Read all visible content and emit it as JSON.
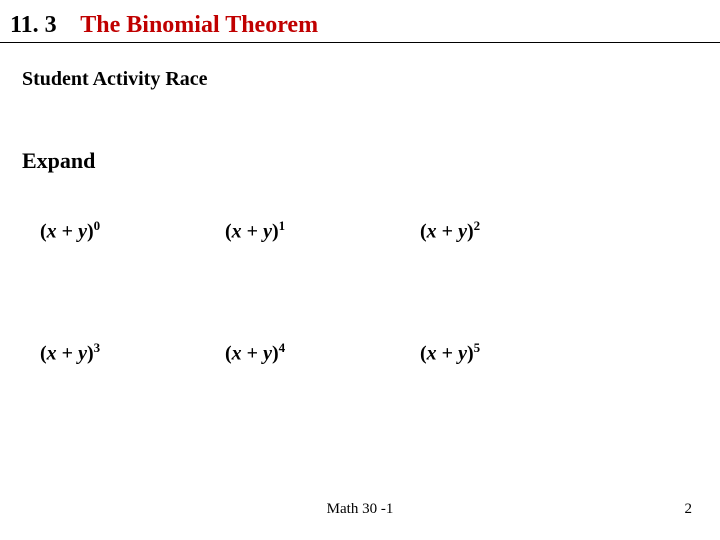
{
  "section": {
    "number": "11. 3",
    "title": "The Binomial Theorem",
    "title_color": "#c00000"
  },
  "subtitle": "Student Activity Race",
  "expand_label": "Expand",
  "exprs": {
    "r1c1": {
      "base_open": "(",
      "x": "x",
      "plus": " + ",
      "y": "y",
      "base_close": ")",
      "exp": "0"
    },
    "r1c2": {
      "base_open": "(",
      "x": "x",
      "plus": " + ",
      "y": "y",
      "base_close": ")",
      "exp": "1"
    },
    "r1c3": {
      "base_open": "(",
      "x": "x",
      "plus": " + ",
      "y": "y",
      "base_close": ")",
      "exp": "2"
    },
    "r2c1": {
      "base_open": "(",
      "x": "x",
      "plus": " + ",
      "y": "y",
      "base_close": ")",
      "exp": "3"
    },
    "r2c2": {
      "base_open": "(",
      "x": "x",
      "plus": " + ",
      "y": "y",
      "base_close": ")",
      "exp": "4"
    },
    "r2c3": {
      "base_open": "(",
      "x": "x",
      "plus": " + ",
      "y": "y",
      "base_close": ")",
      "exp": "5"
    }
  },
  "footer": {
    "course": "Math 30 -1",
    "page": "2"
  }
}
